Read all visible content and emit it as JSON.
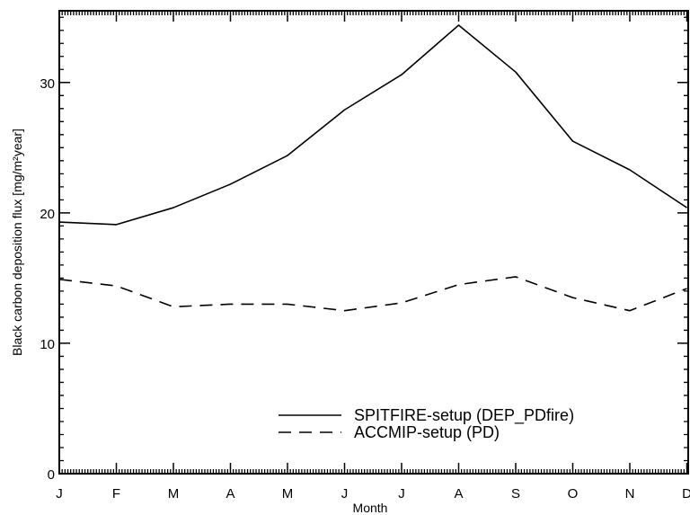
{
  "chart_data": {
    "type": "line",
    "title": "",
    "xlabel": "Month",
    "ylabel": "Black carbon deposition flux  [mg/m²year]",
    "categories": [
      "J",
      "F",
      "M",
      "A",
      "M",
      "J",
      "J",
      "A",
      "S",
      "O",
      "N",
      "D"
    ],
    "ylim": [
      0,
      35.5
    ],
    "yticks": [
      0,
      10,
      20,
      30
    ],
    "grid": false,
    "legend_position": "bottom-right",
    "series": [
      {
        "name": "SPITFIRE-setup (DEP_PDfire)",
        "style": "solid",
        "color": "#000000",
        "values": [
          19.3,
          19.1,
          20.4,
          22.2,
          24.4,
          27.9,
          30.6,
          34.4,
          30.8,
          25.5,
          23.3,
          20.4
        ]
      },
      {
        "name": "ACCMIP-setup (PD)",
        "style": "dashed",
        "color": "#000000",
        "values": [
          14.9,
          14.4,
          12.8,
          13.0,
          13.0,
          12.5,
          13.1,
          14.5,
          15.1,
          13.5,
          12.5,
          14.2
        ]
      }
    ]
  }
}
